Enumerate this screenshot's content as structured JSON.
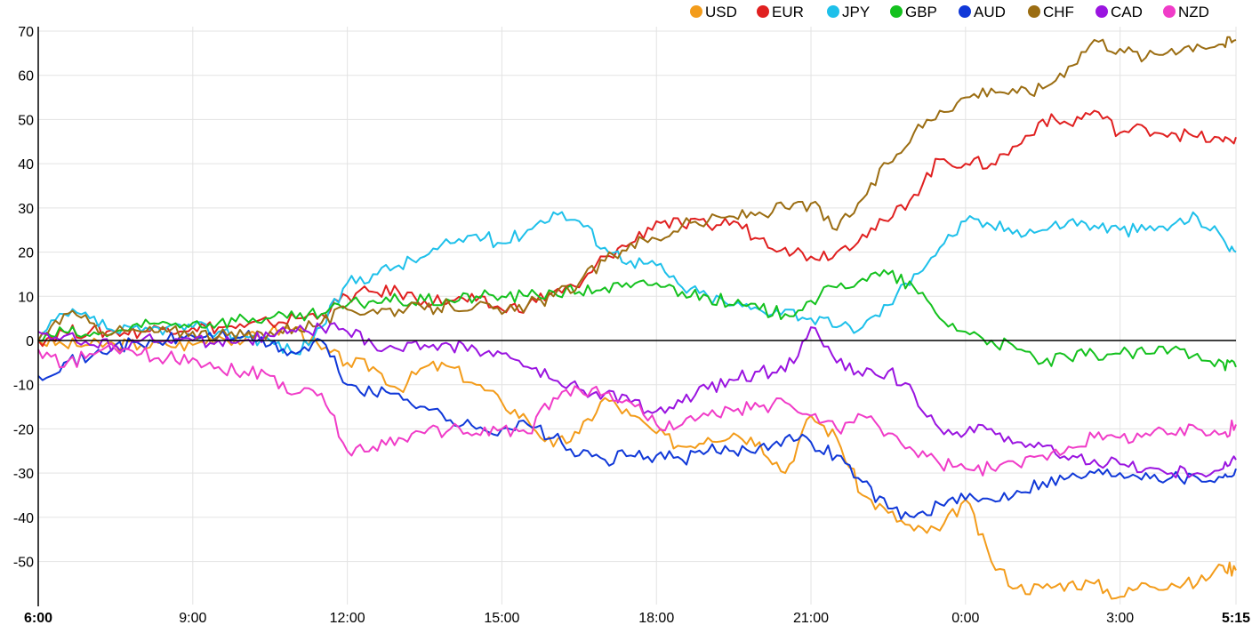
{
  "chart_data": {
    "type": "line",
    "title": "",
    "xlabel": "",
    "ylabel": "",
    "ylim": [
      -60,
      70
    ],
    "y_ticks": [
      70,
      60,
      50,
      40,
      30,
      20,
      10,
      0,
      -10,
      -20,
      -30,
      -40,
      -50
    ],
    "x_ticks": [
      {
        "label": "6:00",
        "x": 0,
        "bold": true
      },
      {
        "label": "9:00",
        "x": 3,
        "bold": false
      },
      {
        "label": "12:00",
        "x": 6,
        "bold": false
      },
      {
        "label": "15:00",
        "x": 9,
        "bold": false
      },
      {
        "label": "18:00",
        "x": 12,
        "bold": false
      },
      {
        "label": "21:00",
        "x": 15,
        "bold": false
      },
      {
        "label": "0:00",
        "x": 18,
        "bold": false
      },
      {
        "label": "3:00",
        "x": 21,
        "bold": false
      },
      {
        "label": "5:15",
        "x": 23.25,
        "bold": true
      }
    ],
    "xlim": [
      0,
      23.25
    ],
    "grid": true,
    "legend_position": "top-right",
    "x": [
      0,
      0.5,
      1,
      1.5,
      2,
      2.5,
      3,
      3.5,
      4,
      4.5,
      5,
      5.5,
      6,
      6.5,
      7,
      7.5,
      8,
      8.5,
      9,
      9.5,
      10,
      10.5,
      11,
      11.5,
      12,
      12.5,
      13,
      13.5,
      14,
      14.5,
      15,
      15.5,
      16,
      16.5,
      17,
      17.5,
      18,
      18.5,
      19,
      19.5,
      20,
      20.5,
      21,
      21.5,
      22,
      22.5,
      23,
      23.25
    ],
    "series": [
      {
        "name": "USD",
        "color": "#f39c1b",
        "values": [
          0,
          -1,
          -1,
          -1,
          -1,
          -1,
          -1,
          1,
          0,
          2,
          3,
          -2,
          -5,
          -6,
          -11,
          -6,
          -6,
          -10,
          -14,
          -18,
          -24,
          -21,
          -13,
          -17,
          -21,
          -24,
          -22,
          -21,
          -23,
          -30,
          -17,
          -22,
          -35,
          -39,
          -43,
          -43,
          -36,
          -50,
          -56,
          -56,
          -55,
          -55,
          -58,
          -55,
          -55,
          -55,
          -51,
          -52
        ]
      },
      {
        "name": "EUR",
        "color": "#e02020",
        "values": [
          0,
          2,
          2,
          2,
          2,
          3,
          3,
          3,
          3,
          4,
          5,
          6,
          10,
          11,
          11,
          9,
          9,
          9,
          7,
          8,
          11,
          12,
          19,
          22,
          27,
          26,
          26,
          27,
          23,
          21,
          19,
          20,
          24,
          27,
          33,
          41,
          40,
          40,
          44,
          50,
          49,
          52,
          47,
          48,
          47,
          46,
          45,
          46
        ]
      },
      {
        "name": "JPY",
        "color": "#1ec0ea",
        "values": [
          0,
          6,
          5,
          2,
          2,
          3,
          3,
          2,
          1,
          0,
          -3,
          3,
          13,
          15,
          17,
          19,
          22,
          24,
          22,
          25,
          29,
          27,
          21,
          18,
          17,
          12,
          10,
          8,
          7,
          7,
          5,
          3,
          3,
          8,
          15,
          21,
          27,
          26,
          25,
          25,
          27,
          26,
          25,
          25,
          26,
          28,
          23,
          20
        ]
      },
      {
        "name": "GBP",
        "color": "#14c11e",
        "values": [
          0,
          2,
          1,
          2,
          3,
          4,
          4,
          4,
          5,
          5,
          5,
          6,
          8,
          9,
          9,
          9,
          9,
          10,
          10,
          10,
          11,
          11,
          12,
          12,
          13,
          11,
          10,
          8,
          7,
          6,
          9,
          12,
          14,
          15,
          12,
          5,
          2,
          0,
          -2,
          -5,
          -4,
          -3,
          -3,
          -3,
          -2,
          -3,
          -5,
          -6
        ]
      },
      {
        "name": "AUD",
        "color": "#1038d8",
        "values": [
          -8,
          -5,
          -4,
          -1,
          -1,
          0,
          1,
          1,
          1,
          -1,
          -3,
          0,
          -10,
          -12,
          -12,
          -15,
          -18,
          -20,
          -20,
          -19,
          -22,
          -26,
          -27,
          -26,
          -26,
          -27,
          -25,
          -25,
          -24,
          -22,
          -23,
          -26,
          -32,
          -38,
          -40,
          -37,
          -36,
          -36,
          -34,
          -32,
          -31,
          -30,
          -30,
          -30,
          -31,
          -31,
          -31,
          -29
        ]
      },
      {
        "name": "CHF",
        "color": "#9b6d12",
        "values": [
          0,
          6,
          4,
          2,
          2,
          2,
          2,
          1,
          1,
          2,
          3,
          4,
          7,
          7,
          7,
          7,
          8,
          8,
          6,
          8,
          10,
          13,
          18,
          22,
          23,
          26,
          27,
          28,
          29,
          30,
          31,
          25,
          32,
          40,
          47,
          52,
          55,
          57,
          56,
          57,
          62,
          68,
          66,
          64,
          66,
          67,
          67,
          68
        ]
      },
      {
        "name": "CAD",
        "color": "#9a14e0",
        "values": [
          2,
          1,
          -1,
          -1,
          0,
          0,
          0,
          0,
          0,
          1,
          2,
          3,
          2,
          -1,
          -2,
          -1,
          -1,
          -2,
          -3,
          -6,
          -9,
          -11,
          -12,
          -14,
          -16,
          -14,
          -11,
          -9,
          -7,
          -7,
          3,
          -5,
          -8,
          -7,
          -12,
          -20,
          -21,
          -20,
          -23,
          -24,
          -27,
          -27,
          -28,
          -29,
          -30,
          -30,
          -29,
          -27
        ]
      },
      {
        "name": "NZD",
        "color": "#f03cc8",
        "values": [
          -2,
          -6,
          -3,
          -2,
          -3,
          -4,
          -4,
          -6,
          -7,
          -8,
          -12,
          -12,
          -25,
          -24,
          -22,
          -21,
          -20,
          -21,
          -20,
          -21,
          -13,
          -11,
          -12,
          -14,
          -19,
          -19,
          -17,
          -16,
          -15,
          -14,
          -17,
          -20,
          -17,
          -21,
          -25,
          -28,
          -29,
          -29,
          -28,
          -26,
          -24,
          -22,
          -22,
          -21,
          -21,
          -20,
          -21,
          -19
        ]
      }
    ]
  }
}
